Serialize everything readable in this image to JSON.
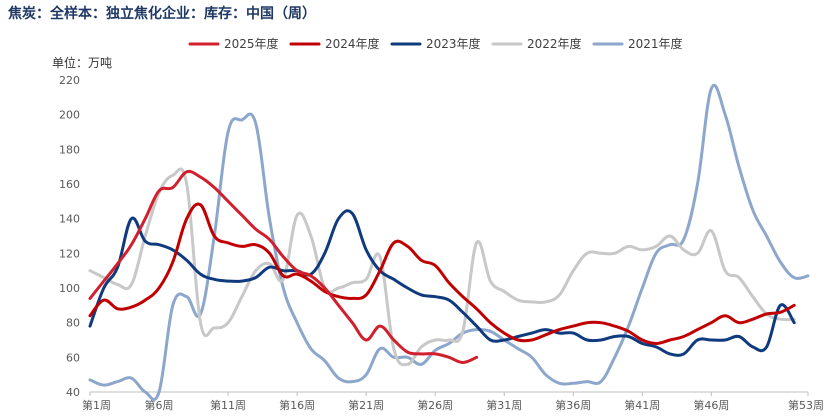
{
  "title": "焦炭：全样本：独立焦化企业：库存：中国（周）",
  "chart_data": {
    "type": "line",
    "title": "焦炭：全样本：独立焦化企业：库存：中国（周）",
    "unit_label": "单位：万吨",
    "xlabel": "",
    "ylabel": "",
    "ylim": [
      40,
      220
    ],
    "y_ticks": [
      40,
      60,
      80,
      100,
      120,
      140,
      160,
      180,
      200,
      220
    ],
    "x_range": [
      1,
      53
    ],
    "x_tick_values": [
      1,
      6,
      11,
      16,
      21,
      26,
      31,
      36,
      41,
      46,
      53
    ],
    "x_tick_labels": [
      "第1周",
      "第6周",
      "第11周",
      "第16周",
      "第21周",
      "第26周",
      "第31周",
      "第36周",
      "第41周",
      "第46周",
      "第53周"
    ],
    "grid": false,
    "legend_position": "top",
    "series": [
      {
        "name": "2025年度",
        "color": "#d0202e",
        "x": [
          1,
          2,
          3,
          4,
          5,
          6,
          7,
          8,
          9,
          10,
          11,
          12,
          13,
          14,
          15,
          16,
          17,
          18,
          19,
          20,
          21,
          22,
          23,
          24,
          25,
          26,
          27,
          28,
          29
        ],
        "values": [
          94,
          104,
          114,
          125,
          140,
          156,
          158,
          167,
          164,
          158,
          150,
          142,
          134,
          128,
          118,
          110,
          107,
          100,
          90,
          80,
          70,
          78,
          70,
          63,
          62,
          62,
          60,
          57,
          60
        ]
      },
      {
        "name": "2024年度",
        "color": "#c00000",
        "x": [
          1,
          2,
          3,
          4,
          5,
          6,
          7,
          8,
          9,
          10,
          11,
          12,
          13,
          14,
          15,
          16,
          17,
          18,
          19,
          20,
          21,
          22,
          23,
          24,
          25,
          26,
          27,
          28,
          29,
          30,
          31,
          32,
          33,
          34,
          35,
          36,
          37,
          38,
          39,
          40,
          41,
          42,
          43,
          44,
          45,
          46,
          47,
          48,
          49,
          50,
          51,
          52
        ],
        "values": [
          84,
          93,
          88,
          89,
          93,
          100,
          115,
          140,
          148,
          130,
          126,
          124,
          125,
          120,
          107,
          108,
          104,
          98,
          95,
          94,
          96,
          110,
          126,
          124,
          116,
          113,
          103,
          95,
          88,
          80,
          74,
          70,
          70,
          73,
          76,
          78,
          80,
          80,
          78,
          75,
          70,
          68,
          70,
          72,
          76,
          80,
          84,
          80,
          82,
          85,
          86,
          90
        ]
      },
      {
        "name": "2023年度",
        "color": "#0f3b7e",
        "x": [
          1,
          2,
          3,
          4,
          5,
          6,
          7,
          8,
          9,
          10,
          11,
          12,
          13,
          14,
          15,
          16,
          17,
          18,
          19,
          20,
          21,
          22,
          23,
          24,
          25,
          26,
          27,
          28,
          29,
          30,
          31,
          32,
          33,
          34,
          35,
          36,
          37,
          38,
          39,
          40,
          41,
          42,
          43,
          44,
          45,
          46,
          47,
          48,
          49,
          50,
          51,
          52
        ],
        "values": [
          78,
          100,
          112,
          140,
          127,
          125,
          122,
          116,
          108,
          105,
          104,
          104,
          106,
          112,
          110,
          110,
          108,
          120,
          140,
          143,
          122,
          110,
          105,
          100,
          96,
          95,
          93,
          86,
          78,
          70,
          70,
          72,
          74,
          76,
          74,
          74,
          70,
          70,
          72,
          72,
          68,
          66,
          62,
          62,
          70,
          70,
          70,
          72,
          66,
          66,
          90,
          80
        ]
      },
      {
        "name": "2022年度",
        "color": "#c8c8c8",
        "x": [
          1,
          2,
          3,
          4,
          5,
          6,
          7,
          8,
          9,
          10,
          11,
          12,
          13,
          14,
          15,
          16,
          17,
          18,
          19,
          20,
          21,
          22,
          23,
          24,
          25,
          26,
          27,
          28,
          29,
          30,
          31,
          32,
          33,
          34,
          35,
          36,
          37,
          38,
          39,
          40,
          41,
          42,
          43,
          44,
          45,
          46,
          47,
          48,
          49,
          50,
          51,
          52
        ],
        "values": [
          110,
          106,
          102,
          102,
          130,
          155,
          165,
          160,
          80,
          77,
          80,
          95,
          110,
          114,
          105,
          142,
          130,
          100,
          100,
          103,
          105,
          118,
          65,
          56,
          66,
          70,
          70,
          75,
          126,
          104,
          98,
          93,
          92,
          92,
          96,
          110,
          120,
          120,
          120,
          124,
          122,
          124,
          130,
          122,
          120,
          133,
          110,
          106,
          95,
          85,
          82,
          82
        ]
      },
      {
        "name": "2021年度",
        "color": "#8da7cc",
        "x": [
          1,
          2,
          3,
          4,
          5,
          6,
          7,
          8,
          9,
          10,
          11,
          12,
          13,
          14,
          15,
          16,
          17,
          18,
          19,
          20,
          21,
          22,
          23,
          24,
          25,
          26,
          27,
          28,
          29,
          30,
          31,
          32,
          33,
          34,
          35,
          36,
          37,
          38,
          39,
          40,
          41,
          42,
          43,
          44,
          45,
          46,
          47,
          48,
          49,
          50,
          51,
          52,
          53
        ],
        "values": [
          47,
          44,
          46,
          48,
          40,
          40,
          90,
          95,
          85,
          130,
          190,
          197,
          195,
          140,
          100,
          80,
          65,
          58,
          48,
          46,
          50,
          65,
          60,
          60,
          56,
          64,
          68,
          74,
          76,
          75,
          70,
          65,
          60,
          50,
          45,
          45,
          46,
          46,
          60,
          78,
          100,
          120,
          125,
          128,
          160,
          215,
          200,
          170,
          145,
          130,
          115,
          106,
          107
        ]
      }
    ]
  }
}
